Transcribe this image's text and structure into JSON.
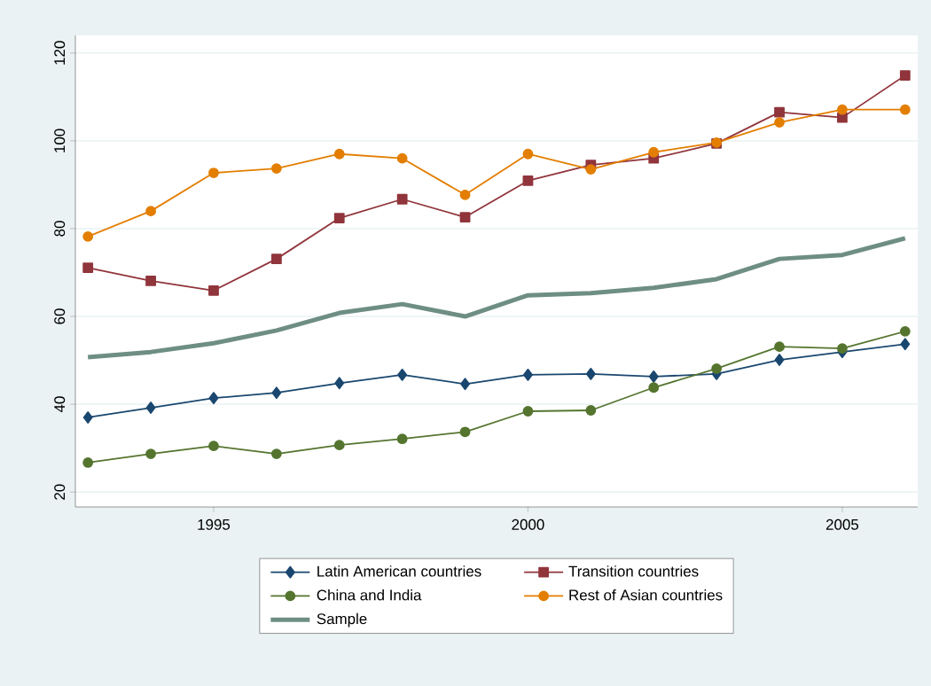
{
  "chart_data": {
    "type": "line",
    "x": [
      1993,
      1994,
      1995,
      1996,
      1997,
      1998,
      1999,
      2000,
      2001,
      2002,
      2003,
      2004,
      2005,
      2006
    ],
    "series": [
      {
        "name": "Latin American countries",
        "color": "#1a476f",
        "marker": "diamond",
        "values": [
          37.0,
          39.2,
          41.4,
          42.6,
          44.8,
          46.7,
          44.6,
          46.7,
          46.9,
          46.3,
          46.9,
          50.1,
          51.9,
          53.7
        ]
      },
      {
        "name": "Transition countries",
        "color": "#90353b",
        "marker": "square",
        "values": [
          71.1,
          68.1,
          65.9,
          73.1,
          82.4,
          86.7,
          82.6,
          90.9,
          94.5,
          96.0,
          99.4,
          106.5,
          105.3,
          114.9
        ]
      },
      {
        "name": "China and India",
        "color": "#55752f",
        "marker": "circle",
        "values": [
          26.7,
          28.7,
          30.5,
          28.7,
          30.7,
          32.1,
          33.7,
          38.4,
          38.6,
          43.8,
          48.1,
          53.1,
          52.7,
          56.6
        ]
      },
      {
        "name": "Rest of Asian countries",
        "color": "#e37e00",
        "marker": "circle",
        "values": [
          78.2,
          84.0,
          92.7,
          93.7,
          97.0,
          96.0,
          87.7,
          97.0,
          93.5,
          97.4,
          99.6,
          104.2,
          107.1,
          107.1
        ]
      },
      {
        "name": "Sample",
        "color": "#6e8e84",
        "marker": "none",
        "values": [
          50.7,
          51.9,
          53.9,
          56.8,
          60.8,
          62.8,
          60.0,
          64.8,
          65.3,
          66.5,
          68.5,
          73.1,
          74.0,
          77.8
        ]
      }
    ],
    "xlim": [
      1992.8,
      2006.2
    ],
    "xticks": [
      1995,
      2000,
      2005
    ],
    "ylim": [
      16.6,
      124
    ],
    "yticks": [
      20,
      40,
      60,
      80,
      100,
      120
    ],
    "grid": "y",
    "legend": "bottom",
    "line_style": "solid"
  }
}
